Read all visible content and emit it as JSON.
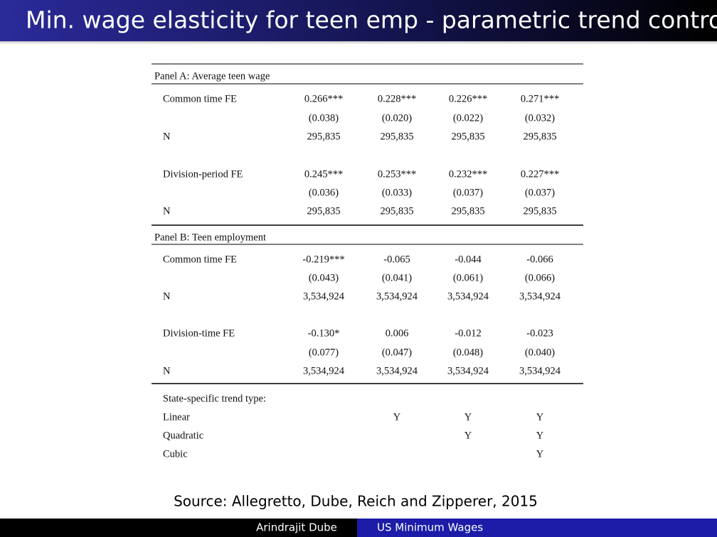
{
  "header": {
    "title": "Min. wage elasticity for teen emp - parametric trend controls"
  },
  "table": {
    "panels": [
      {
        "title": "Panel A: Average teen wage",
        "groups": [
          {
            "label": "Common time FE",
            "coefs": [
              "0.266***",
              "0.228***",
              "0.226***",
              "0.271***"
            ],
            "ses": [
              "(0.038)",
              "(0.020)",
              "(0.022)",
              "(0.032)"
            ],
            "n_label": "N",
            "n": [
              "295,835",
              "295,835",
              "295,835",
              "295,835"
            ]
          },
          {
            "label": "Division-period FE",
            "coefs": [
              "0.245***",
              "0.253***",
              "0.232***",
              "0.227***"
            ],
            "ses": [
              "(0.036)",
              "(0.033)",
              "(0.037)",
              "(0.037)"
            ],
            "n_label": "N",
            "n": [
              "295,835",
              "295,835",
              "295,835",
              "295,835"
            ]
          }
        ]
      },
      {
        "title": "Panel B: Teen employment",
        "groups": [
          {
            "label": "Common time FE",
            "coefs": [
              "-0.219***",
              "-0.065",
              "-0.044",
              "-0.066"
            ],
            "ses": [
              "(0.043)",
              "(0.041)",
              "(0.061)",
              "(0.066)"
            ],
            "n_label": "N",
            "n": [
              "3,534,924",
              "3,534,924",
              "3,534,924",
              "3,534,924"
            ]
          },
          {
            "label": "Division-time FE",
            "coefs": [
              "-0.130*",
              "0.006",
              "-0.012",
              "-0.023"
            ],
            "ses": [
              "(0.077)",
              "(0.047)",
              "(0.048)",
              "(0.040)"
            ],
            "n_label": "N",
            "n": [
              "3,534,924",
              "3,534,924",
              "3,534,924",
              "3,534,924"
            ]
          }
        ]
      }
    ],
    "trends": {
      "heading": "State-specific trend type:",
      "rows": [
        {
          "label": "Linear",
          "marks": [
            null,
            "Y",
            "Y",
            "Y"
          ]
        },
        {
          "label": "Quadratic",
          "marks": [
            null,
            null,
            "Y",
            "Y"
          ]
        },
        {
          "label": "Cubic",
          "marks": [
            null,
            null,
            null,
            "Y"
          ]
        }
      ]
    }
  },
  "source": "Source: Allegretto, Dube, Reich and Zipperer, 2015",
  "footer": {
    "author": "Arindrajit Dube",
    "short_title": "US Minimum Wages"
  }
}
